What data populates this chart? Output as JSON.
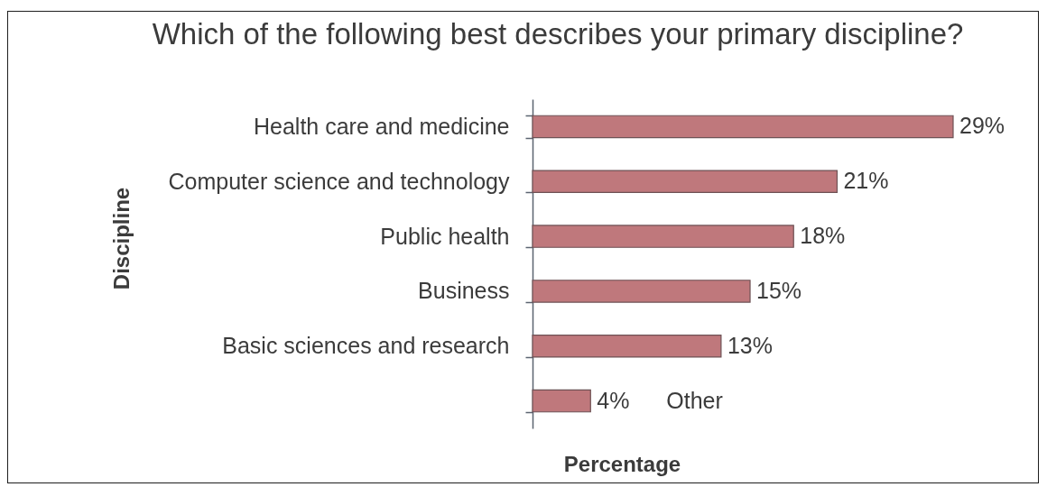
{
  "chart_data": {
    "type": "bar",
    "orientation": "horizontal",
    "title": "Which of the following best describes your primary discipline?",
    "xlabel": "Percentage",
    "ylabel": "Discipline",
    "categories": [
      "Health care and medicine",
      "Computer science and technology",
      "Public health",
      "Business",
      "Basic sciences and research",
      "Other"
    ],
    "values": [
      29,
      21,
      18,
      15,
      13,
      4
    ],
    "value_labels": [
      "29%",
      "21%",
      "18%",
      "15%",
      "13%",
      "4%"
    ],
    "color": "#bf787c",
    "tick_labels": "y"
  }
}
